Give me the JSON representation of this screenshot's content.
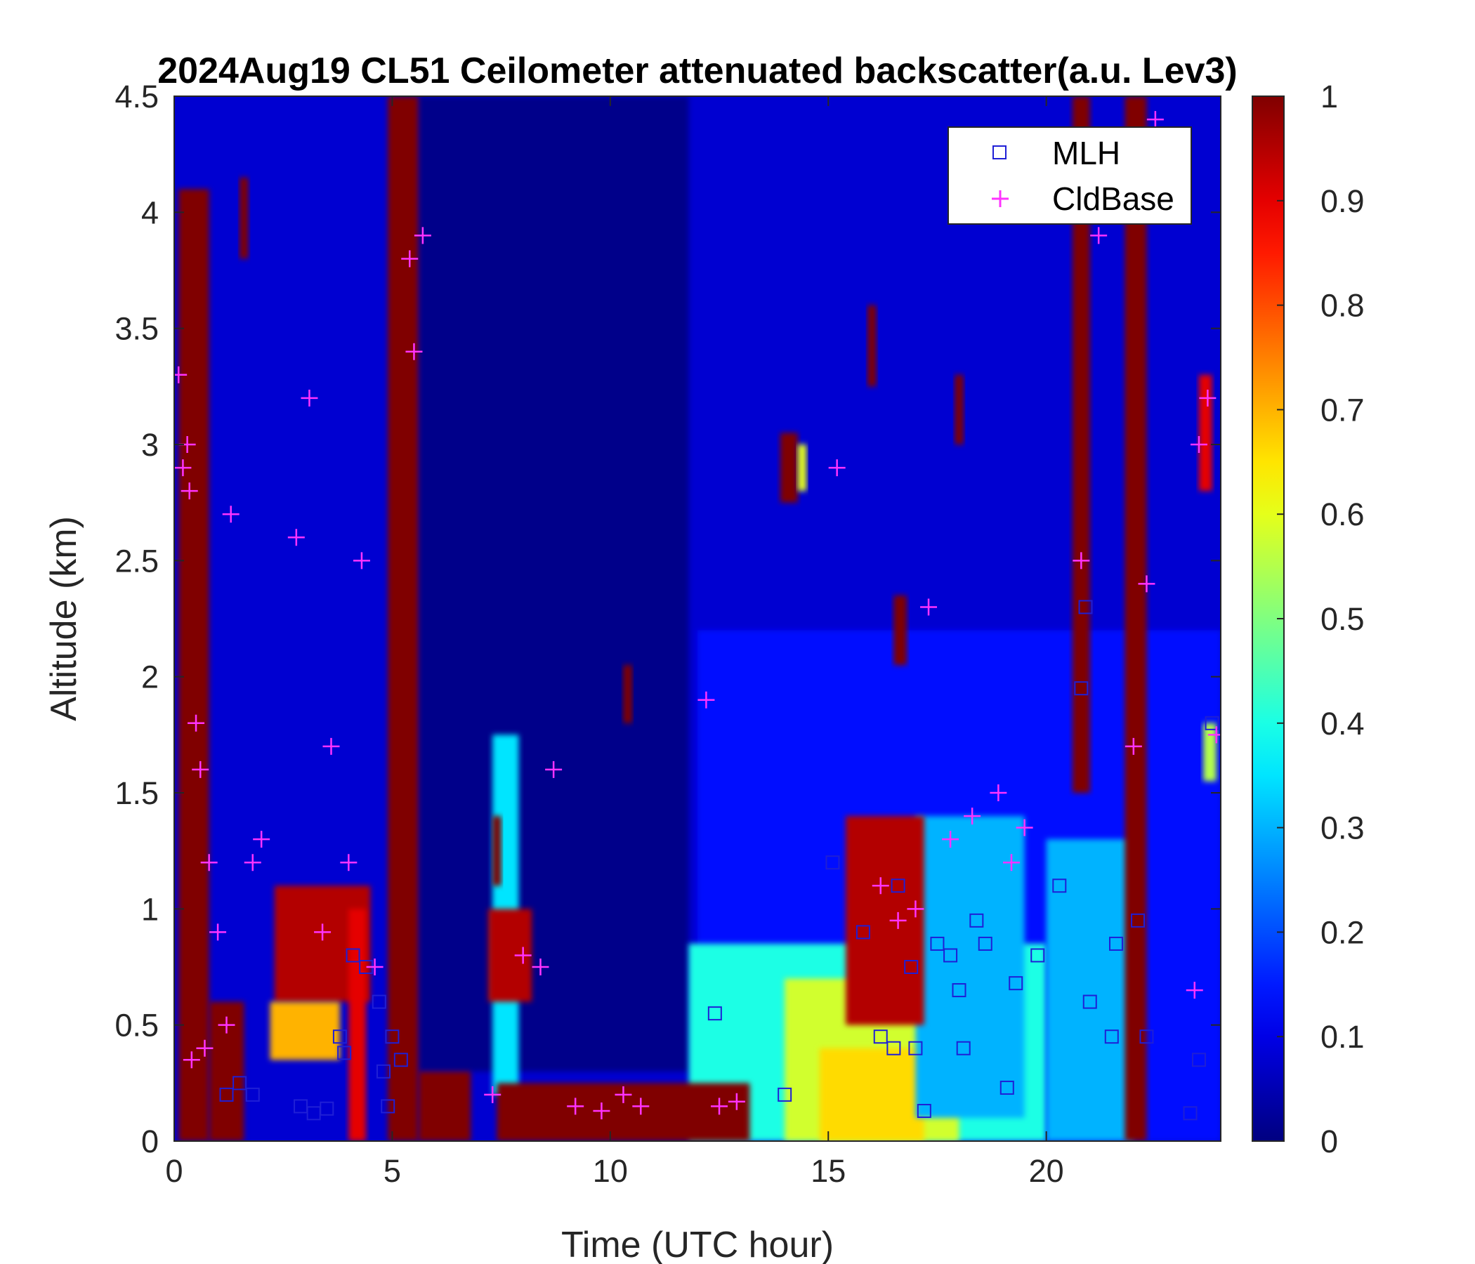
{
  "chart_data": {
    "type": "heatmap",
    "title": "2024Aug19 CL51 Ceilometer attenuated backscatter(a.u. Lev3)",
    "xlabel": "Time (UTC hour)",
    "ylabel": "Altitude (km)",
    "xlim": [
      0,
      24
    ],
    "ylim": [
      0,
      4.5
    ],
    "x_ticks": [
      0,
      5,
      10,
      15,
      20
    ],
    "x_tick_labels": [
      "0",
      "5",
      "10",
      "15",
      "20"
    ],
    "y_ticks": [
      0,
      0.5,
      1,
      1.5,
      2,
      2.5,
      3,
      3.5,
      4,
      4.5
    ],
    "y_tick_labels": [
      "0",
      "0.5",
      "1",
      "1.5",
      "2",
      "2.5",
      "3",
      "3.5",
      "4",
      "4.5"
    ],
    "colorbar": {
      "range": [
        0,
        1
      ],
      "ticks": [
        0,
        0.1,
        0.2,
        0.3,
        0.4,
        0.5,
        0.6,
        0.7,
        0.8,
        0.9,
        1
      ],
      "tick_labels": [
        "0",
        "0.1",
        "0.2",
        "0.3",
        "0.4",
        "0.5",
        "0.6",
        "0.7",
        "0.8",
        "0.9",
        "1"
      ],
      "colormap": "jet"
    },
    "legend": {
      "placement": "top-right",
      "entries": [
        {
          "label": "MLH",
          "marker": "square",
          "color": "#1f1fd6"
        },
        {
          "label": "CldBase",
          "marker": "plus",
          "color": "#ff33ff"
        }
      ]
    },
    "heatmap_regions": [
      {
        "x": [
          0,
          24
        ],
        "y": [
          0,
          4.5
        ],
        "value": 0.08
      },
      {
        "x": [
          5.6,
          11.8
        ],
        "y": [
          0.3,
          4.5
        ],
        "value": 0.01
      },
      {
        "x": [
          12,
          24
        ],
        "y": [
          0,
          2.2
        ],
        "value": 0.14
      },
      {
        "x": [
          7.3,
          7.9
        ],
        "y": [
          0.2,
          1.75
        ],
        "value": 0.35
      },
      {
        "x": [
          11.8,
          20
        ],
        "y": [
          0,
          0.85
        ],
        "value": 0.4
      },
      {
        "x": [
          14,
          18
        ],
        "y": [
          0,
          0.7
        ],
        "value": 0.58
      },
      {
        "x": [
          14.8,
          17.2
        ],
        "y": [
          0,
          0.4
        ],
        "value": 0.66
      },
      {
        "x": [
          17,
          19.5
        ],
        "y": [
          0.1,
          1.4
        ],
        "value": 0.3
      },
      {
        "x": [
          20,
          22
        ],
        "y": [
          0,
          1.3
        ],
        "value": 0.3
      },
      {
        "x": [
          0.1,
          0.8
        ],
        "y": [
          0,
          4.1
        ],
        "value": 1
      },
      {
        "x": [
          0.8,
          1.6
        ],
        "y": [
          0,
          0.6
        ],
        "value": 1
      },
      {
        "x": [
          1.5,
          1.7
        ],
        "y": [
          3.8,
          4.15
        ],
        "value": 1
      },
      {
        "x": [
          2.3,
          4.5
        ],
        "y": [
          0.6,
          1.1
        ],
        "value": 0.95
      },
      {
        "x": [
          2.2,
          3.8
        ],
        "y": [
          0.35,
          0.6
        ],
        "value": 0.7
      },
      {
        "x": [
          4.0,
          4.4
        ],
        "y": [
          0,
          1.0
        ],
        "value": 0.9
      },
      {
        "x": [
          4.9,
          5.6
        ],
        "y": [
          0,
          4.5
        ],
        "value": 1
      },
      {
        "x": [
          5.6,
          6.8
        ],
        "y": [
          0,
          0.3
        ],
        "value": 1
      },
      {
        "x": [
          7.3,
          7.5
        ],
        "y": [
          1.1,
          1.4
        ],
        "value": 1
      },
      {
        "x": [
          7.2,
          8.2
        ],
        "y": [
          0.6,
          1.0
        ],
        "value": 0.95
      },
      {
        "x": [
          7.4,
          13.2
        ],
        "y": [
          0,
          0.25
        ],
        "value": 1
      },
      {
        "x": [
          10.3,
          10.5
        ],
        "y": [
          1.8,
          2.05
        ],
        "value": 1
      },
      {
        "x": [
          13.9,
          14.3
        ],
        "y": [
          2.75,
          3.05
        ],
        "value": 1
      },
      {
        "x": [
          14.3,
          14.5
        ],
        "y": [
          2.8,
          3.0
        ],
        "value": 0.6
      },
      {
        "x": [
          15.4,
          17.2
        ],
        "y": [
          0.5,
          1.4
        ],
        "value": 0.95
      },
      {
        "x": [
          15.9,
          16.1
        ],
        "y": [
          3.25,
          3.6
        ],
        "value": 1
      },
      {
        "x": [
          16.5,
          16.8
        ],
        "y": [
          2.05,
          2.35
        ],
        "value": 1
      },
      {
        "x": [
          17.9,
          18.1
        ],
        "y": [
          3.0,
          3.3
        ],
        "value": 1
      },
      {
        "x": [
          20.6,
          21.0
        ],
        "y": [
          1.5,
          4.5
        ],
        "value": 1
      },
      {
        "x": [
          21.8,
          22.3
        ],
        "y": [
          0,
          4.5
        ],
        "value": 1
      },
      {
        "x": [
          23.5,
          23.8
        ],
        "y": [
          2.8,
          3.3
        ],
        "value": 0.9
      },
      {
        "x": [
          23.6,
          23.9
        ],
        "y": [
          1.55,
          1.8
        ],
        "value": 0.55
      }
    ],
    "series": [
      {
        "name": "MLH",
        "marker": "square",
        "x": [
          1.2,
          1.5,
          1.8,
          2.9,
          3.2,
          3.5,
          3.8,
          3.9,
          4.1,
          4.4,
          4.7,
          4.8,
          4.9,
          5.0,
          5.2,
          12.4,
          14.0,
          15.1,
          15.8,
          16.2,
          16.5,
          16.6,
          16.9,
          17.0,
          17.2,
          17.5,
          17.8,
          18.0,
          18.1,
          18.4,
          18.6,
          19.1,
          19.3,
          19.8,
          20.3,
          20.8,
          20.9,
          21.0,
          21.5,
          21.6,
          22.1,
          22.3,
          23.3,
          23.5,
          23.8
        ],
        "y": [
          0.2,
          0.25,
          0.2,
          0.15,
          0.12,
          0.14,
          0.45,
          0.38,
          0.8,
          0.75,
          0.6,
          0.3,
          0.15,
          0.45,
          0.35,
          0.55,
          0.2,
          1.2,
          0.9,
          0.45,
          0.4,
          1.1,
          0.75,
          0.4,
          0.13,
          0.85,
          0.8,
          0.65,
          0.4,
          0.95,
          0.85,
          0.23,
          0.68,
          0.8,
          1.1,
          1.95,
          2.3,
          0.6,
          0.45,
          0.85,
          0.95,
          0.45,
          0.12,
          0.35,
          1.8
        ]
      },
      {
        "name": "CldBase",
        "marker": "plus",
        "x": [
          0.1,
          0.2,
          0.3,
          0.35,
          0.4,
          0.5,
          0.6,
          0.7,
          0.8,
          1.0,
          1.2,
          1.3,
          1.8,
          2.0,
          2.8,
          3.1,
          3.4,
          3.6,
          4.0,
          4.3,
          4.6,
          5.4,
          5.5,
          5.7,
          7.3,
          8.0,
          8.4,
          8.7,
          9.2,
          9.8,
          10.3,
          10.7,
          12.2,
          12.5,
          12.9,
          15.2,
          16.2,
          16.6,
          17.0,
          17.3,
          17.8,
          18.3,
          18.9,
          19.2,
          19.5,
          20.8,
          21.2,
          22.0,
          22.3,
          22.5,
          23.4,
          23.5,
          23.7,
          23.9
        ],
        "y": [
          3.3,
          2.9,
          3.0,
          2.8,
          0.35,
          1.8,
          1.6,
          0.4,
          1.2,
          0.9,
          0.5,
          2.7,
          1.2,
          1.3,
          2.6,
          3.2,
          0.9,
          1.7,
          1.2,
          2.5,
          0.75,
          3.8,
          3.4,
          3.9,
          0.2,
          0.8,
          0.75,
          1.6,
          0.15,
          0.13,
          0.2,
          0.15,
          1.9,
          0.15,
          0.17,
          2.9,
          1.1,
          0.95,
          1.0,
          2.3,
          1.3,
          1.4,
          1.5,
          1.2,
          1.35,
          2.5,
          3.9,
          1.7,
          2.4,
          4.4,
          0.65,
          3.0,
          3.2,
          1.75
        ]
      }
    ]
  }
}
